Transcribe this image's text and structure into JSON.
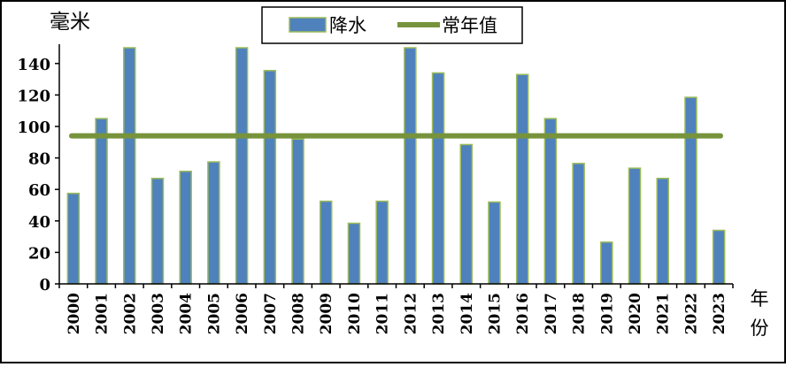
{
  "chart_data": {
    "type": "bar",
    "ylabel": "毫米",
    "xlabel": "年份",
    "ylim": [
      0,
      150
    ],
    "yticks": [
      0,
      20,
      40,
      60,
      80,
      100,
      120,
      140
    ],
    "categories": [
      "2000",
      "2001",
      "2002",
      "2003",
      "2004",
      "2005",
      "2006",
      "2007",
      "2008",
      "2009",
      "2010",
      "2011",
      "2012",
      "2013",
      "2014",
      "2015",
      "2016",
      "2017",
      "2018",
      "2019",
      "2020",
      "2021",
      "2022",
      "2023"
    ],
    "series": [
      {
        "name": "降水",
        "type": "bar",
        "color": "#4f81bd",
        "edge_color": "#9bbb59",
        "values": [
          57.5,
          105,
          150,
          67,
          71.5,
          77.5,
          150,
          135.5,
          92,
          52.5,
          38.5,
          52.5,
          150,
          134,
          88.5,
          52,
          133,
          105,
          76.5,
          26.5,
          73.5,
          67,
          118.5,
          34
        ]
      },
      {
        "name": "常年值",
        "type": "line",
        "color": "#77933c",
        "values": [
          94,
          94,
          94,
          94,
          94,
          94,
          94,
          94,
          94,
          94,
          94,
          94,
          94,
          94,
          94,
          94,
          94,
          94,
          94,
          94,
          94,
          94,
          94,
          94
        ]
      }
    ],
    "grid": false,
    "legend_position": "top-center"
  }
}
